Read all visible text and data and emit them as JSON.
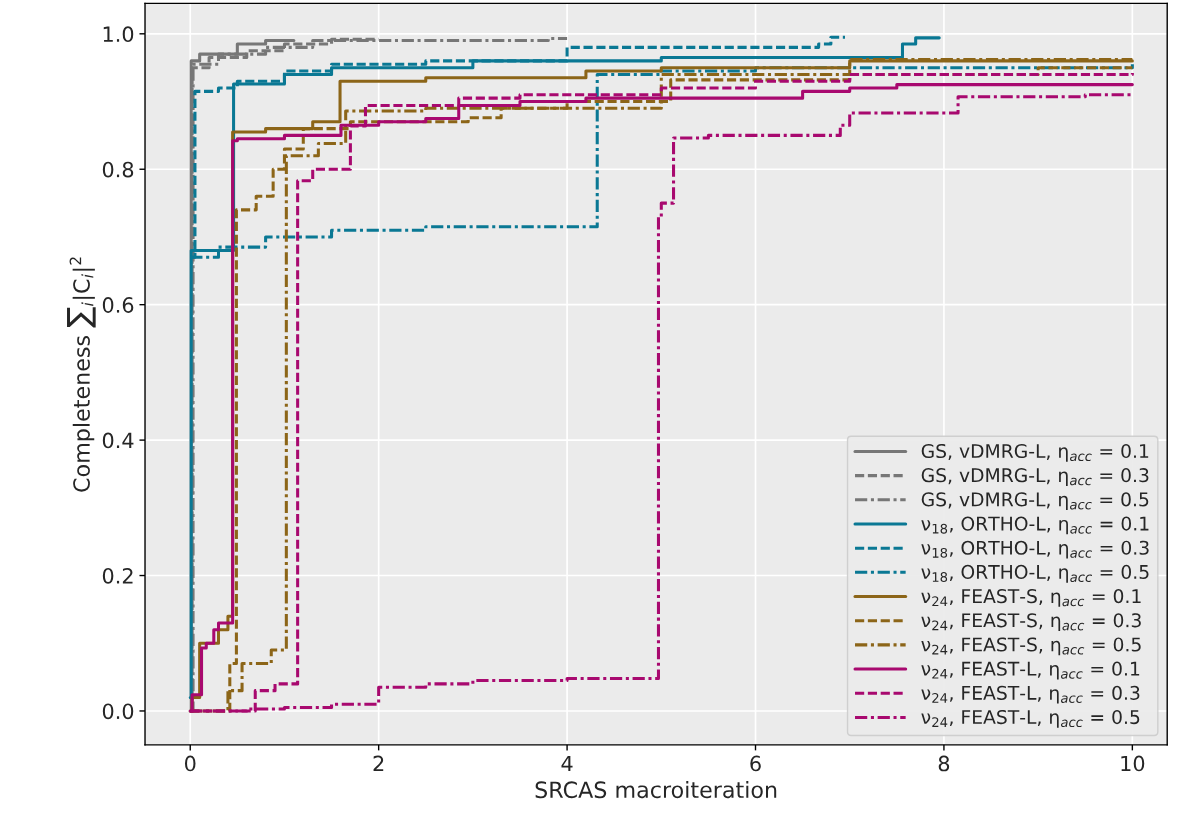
{
  "chart_data": {
    "type": "step",
    "xlabel": "SRCAS macroiteration",
    "ylabel": "Completeness ∑$_{i}$|C$_{i}$|$^{2}$",
    "xlim": [
      -0.48,
      10.37
    ],
    "ylim": [
      -0.05,
      1.045
    ],
    "xticks": [
      0,
      2,
      4,
      6,
      8,
      10
    ],
    "yticks": [
      {
        "value": 0,
        "label": "0.0"
      },
      0.2,
      0.4,
      0.6,
      0.8,
      {
        "value": 1,
        "label": "1.0"
      }
    ],
    "grid": true,
    "legend": "bottom right",
    "marker": "none",
    "series": [
      {
        "name": "GS, vDMRG-L, η$_{acc}$ = 0.1",
        "color": "#777777",
        "line_style": "solid",
        "x": [
          0,
          0.01,
          0.1,
          0.5,
          0.8,
          1.1
        ],
        "values": [
          0,
          0.96,
          0.97,
          0.985,
          0.99,
          0.99
        ]
      },
      {
        "name": "GS, vDMRG-L, η$_{acc}$ = 0.3",
        "color": "#777777",
        "line_style": "dashed",
        "x": [
          0,
          0.02,
          0.2,
          0.6,
          1.0,
          1.5,
          2.0
        ],
        "values": [
          0,
          0.95,
          0.965,
          0.975,
          0.985,
          0.992,
          0.992
        ]
      },
      {
        "name": "GS, vDMRG-L, η$_{acc}$ = 0.5",
        "color": "#777777",
        "line_style": "dashdot",
        "x": [
          0,
          0.03,
          0.3,
          0.8,
          1.3,
          2.5,
          3.8,
          4.0
        ],
        "values": [
          0,
          0.955,
          0.97,
          0.98,
          0.99,
          0.99,
          0.993,
          0.993
        ]
      },
      {
        "name": "ν$_{18}$, ORTHO-L, η$_{acc}$ = 0.1",
        "color": "#0a7894",
        "line_style": "solid",
        "x": [
          0,
          0.01,
          0.46,
          1.0,
          1.5,
          3.0,
          5.0,
          7.56,
          7.7,
          7.95
        ],
        "values": [
          0.02,
          0.68,
          0.926,
          0.94,
          0.95,
          0.96,
          0.965,
          0.985,
          0.994,
          0.994
        ]
      },
      {
        "name": "ν$_{18}$, ORTHO-L, η$_{acc}$ = 0.3",
        "color": "#0a7894",
        "line_style": "dashed",
        "x": [
          0,
          0.05,
          0.3,
          0.5,
          1.0,
          1.5,
          2.5,
          4.0,
          6.67,
          6.8,
          6.95
        ],
        "values": [
          0.67,
          0.915,
          0.92,
          0.93,
          0.945,
          0.955,
          0.96,
          0.98,
          0.985,
          0.995,
          0.995
        ]
      },
      {
        "name": "ν$_{18}$, ORTHO-L, η$_{acc}$ = 0.5",
        "color": "#0a7894",
        "line_style": "dashdot",
        "x": [
          0,
          0.3,
          0.8,
          1.5,
          2.5,
          4.32,
          5.0,
          6.0,
          10.0
        ],
        "values": [
          0.67,
          0.685,
          0.7,
          0.71,
          0.715,
          0.94,
          0.945,
          0.95,
          0.955
        ]
      },
      {
        "name": "ν$_{24}$, FEAST-S, η$_{acc}$ = 0.1",
        "color": "#8c6518",
        "line_style": "solid",
        "x": [
          0,
          0.02,
          0.1,
          0.3,
          0.4,
          0.45,
          0.8,
          1.3,
          1.59,
          2.5,
          4.2,
          5.0,
          7.0,
          10.0
        ],
        "values": [
          0,
          0.02,
          0.1,
          0.12,
          0.14,
          0.855,
          0.86,
          0.87,
          0.93,
          0.935,
          0.945,
          0.95,
          0.96,
          0.96
        ]
      },
      {
        "name": "ν$_{24}$, FEAST-S, η$_{acc}$ = 0.3",
        "color": "#8c6518",
        "line_style": "dashed",
        "x": [
          0,
          0.42,
          0.49,
          0.7,
          0.88,
          1.0,
          1.2,
          1.7,
          2.95,
          3.3,
          4.0,
          5.1,
          7.0,
          9.0,
          10.0
        ],
        "values": [
          0,
          0.07,
          0.74,
          0.76,
          0.8,
          0.83,
          0.86,
          0.87,
          0.876,
          0.89,
          0.9,
          0.932,
          0.94,
          0.95,
          0.95
        ]
      },
      {
        "name": "ν$_{24}$, FEAST-S, η$_{acc}$ = 0.5",
        "color": "#8c6518",
        "line_style": "dashdot",
        "x": [
          0,
          0.4,
          0.55,
          0.86,
          1.02,
          1.36,
          1.65,
          2.5,
          5.0,
          7.0,
          10.0
        ],
        "values": [
          0,
          0.03,
          0.07,
          0.09,
          0.82,
          0.838,
          0.886,
          0.89,
          0.94,
          0.962,
          0.962
        ]
      },
      {
        "name": "ν$_{24}$, FEAST-L, η$_{acc}$ = 0.1",
        "color": "#a8096f",
        "line_style": "solid",
        "x": [
          0,
          0.02,
          0.12,
          0.17,
          0.25,
          0.3,
          0.45,
          0.5,
          1.0,
          1.6,
          2.0,
          2.5,
          2.85,
          3.5,
          4.2,
          6.5,
          7.0,
          7.5,
          10.0
        ],
        "values": [
          0,
          0.024,
          0.093,
          0.1,
          0.12,
          0.13,
          0.842,
          0.845,
          0.85,
          0.865,
          0.87,
          0.875,
          0.894,
          0.9,
          0.905,
          0.915,
          0.92,
          0.925,
          0.925
        ]
      },
      {
        "name": "ν$_{24}$, FEAST-L, η$_{acc}$ = 0.3",
        "color": "#a8096f",
        "line_style": "dashed",
        "x": [
          0,
          0.69,
          0.9,
          1.14,
          1.3,
          1.7,
          1.86,
          2.85,
          3.5,
          5.0,
          6.0,
          7.0,
          10.0
        ],
        "values": [
          0,
          0.03,
          0.04,
          0.783,
          0.8,
          0.864,
          0.894,
          0.905,
          0.91,
          0.92,
          0.93,
          0.94,
          0.942
        ]
      },
      {
        "name": "ν$_{24}$, FEAST-L, η$_{acc}$ = 0.5",
        "color": "#a8096f",
        "line_style": "dashdot",
        "x": [
          0,
          0.6,
          1.0,
          1.5,
          2.0,
          2.5,
          3.0,
          4.0,
          4.97,
          5.0,
          5.13,
          5.5,
          6.9,
          7.0,
          8.15,
          9.5,
          10.0
        ],
        "values": [
          0,
          0.003,
          0.005,
          0.01,
          0.035,
          0.04,
          0.045,
          0.048,
          0.73,
          0.75,
          0.846,
          0.85,
          0.865,
          0.883,
          0.907,
          0.91,
          0.912
        ]
      }
    ]
  }
}
